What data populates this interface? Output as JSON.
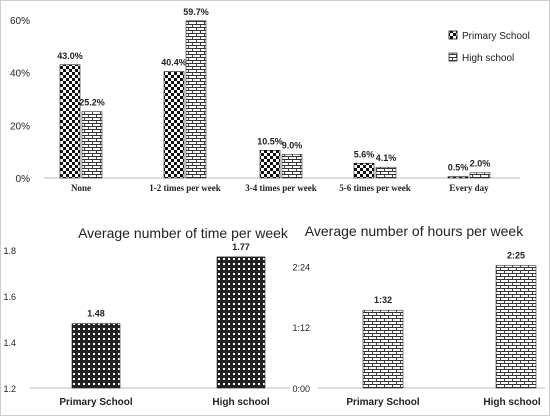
{
  "chart_data": [
    {
      "type": "bar",
      "categories": [
        "None",
        "1-2 times per week",
        "3-4 times per week",
        "5-6 times per week",
        "Every day"
      ],
      "series": [
        {
          "name": "Primary School",
          "values": [
            43.0,
            40.4,
            10.5,
            5.6,
            0.5
          ],
          "labels": [
            "43.0%",
            "40.4%",
            "10.5%",
            "5.6%",
            "0.5%"
          ]
        },
        {
          "name": "High school",
          "values": [
            25.2,
            59.7,
            9.0,
            4.1,
            2.0
          ],
          "labels": [
            "25.2%",
            "59.7%",
            "9.0%",
            "4.1%",
            "2.0%"
          ]
        }
      ],
      "yticks": [
        "0%",
        "20%",
        "40%",
        "60%"
      ],
      "ylim": [
        0,
        60
      ],
      "legend": "top-right",
      "grid": false
    },
    {
      "type": "bar",
      "title": "Average number of time per week",
      "categories": [
        "Primary School",
        "High school"
      ],
      "values": [
        1.48,
        1.77
      ],
      "labels": [
        "1.48",
        "1.77"
      ],
      "yticks": [
        "1.2",
        "1.4",
        "1.6",
        "1.8"
      ],
      "ylim": [
        1.2,
        1.8
      ],
      "grid": false
    },
    {
      "type": "bar",
      "title": "Average number of hours per week",
      "categories": [
        "Primary School",
        "High school"
      ],
      "values": [
        92,
        145
      ],
      "labels": [
        "1:32",
        "2:25"
      ],
      "yticks": [
        "0:00",
        "1:12",
        "2:24"
      ],
      "ylim": [
        0,
        168
      ],
      "grid": false
    }
  ]
}
